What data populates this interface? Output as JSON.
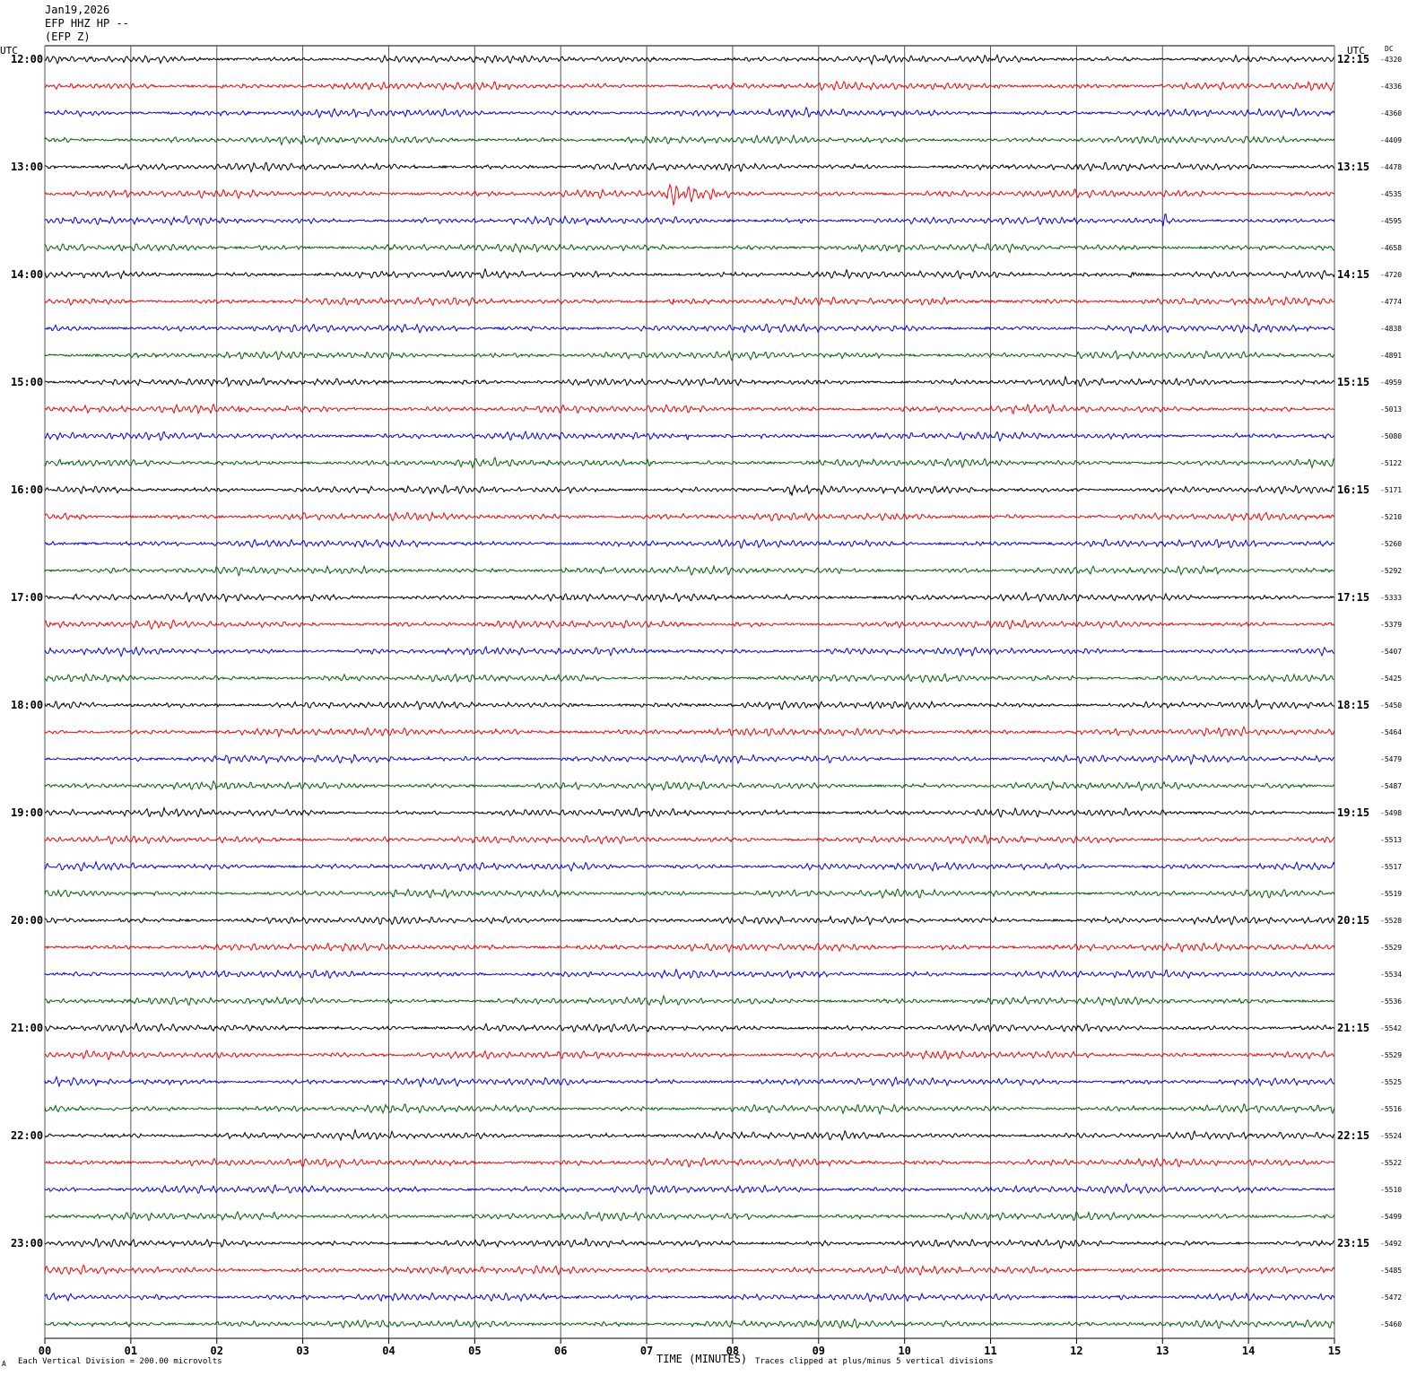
{
  "header": {
    "date": "Jan19,2026",
    "channel": "EFP HHZ HP --",
    "station": "(EFP Z)"
  },
  "left_axis_title": "UTC",
  "right_axis_title": "UTC",
  "dc_title": "DC",
  "footer": {
    "scale_note": "Each Vertical Division =  200.00 microvolts",
    "clip_note": "Traces clipped at plus/minus 5 vertical divisions",
    "corner_mark": "A"
  },
  "chart_data": {
    "type": "line",
    "title": "",
    "xlabel": "TIME (MINUTES)",
    "ylabel": "",
    "xlim": [
      0,
      15
    ],
    "x_ticks": [
      "00",
      "01",
      "02",
      "03",
      "04",
      "05",
      "06",
      "07",
      "08",
      "09",
      "10",
      "11",
      "12",
      "13",
      "14",
      "15"
    ],
    "trace_colors": [
      "#000000",
      "#ff0000",
      "#0000ff",
      "#006400"
    ],
    "hour_labels_left": [
      "12:00",
      "13:00",
      "14:00",
      "15:00",
      "16:00",
      "17:00",
      "18:00",
      "19:00",
      "20:00",
      "21:00",
      "22:00",
      "23:00"
    ],
    "hour_labels_right": [
      "12:15",
      "13:15",
      "14:15",
      "15:15",
      "16:15",
      "17:15",
      "18:15",
      "19:15",
      "20:15",
      "21:15",
      "22:15",
      "23:15"
    ],
    "dc_offsets": [
      "-4320",
      "-4336",
      "-4360",
      "-4409",
      "-4478",
      "-4535",
      "-4595",
      "-4658",
      "-4720",
      "-4774",
      "-4838",
      "-4891",
      "-4959",
      "-5013",
      "-5080",
      "-5122",
      "-5171",
      "-5210",
      "-5260",
      "-5292",
      "-5333",
      "-5379",
      "-5407",
      "-5425",
      "-5450",
      "-5464",
      "-5479",
      "-5487",
      "-5498",
      "-5513",
      "-5517",
      "-5519",
      "-5528",
      "-5529",
      "-5534",
      "-5536",
      "-5542",
      "-5529",
      "-5525",
      "-5516",
      "-5524",
      "-5522",
      "-5510",
      "-5499",
      "-5492",
      "-5485",
      "-5472",
      "-5460"
    ],
    "events": [
      {
        "trace": 5,
        "minute": 7.2,
        "duration": 1.1,
        "amp": 4.5
      },
      {
        "trace": 6,
        "minute": 13.0,
        "duration": 0.15,
        "amp": 5
      },
      {
        "trace": 8,
        "minute": 12.6,
        "duration": 0.25,
        "amp": 5
      },
      {
        "trace": 9,
        "minute": 7.3,
        "duration": 0.15,
        "amp": 5
      },
      {
        "trace": 9,
        "minute": 13.5,
        "duration": 0.2,
        "amp": 1.2
      },
      {
        "trace": 13,
        "minute": 2.25,
        "duration": 0.15,
        "amp": 5
      },
      {
        "trace": 13,
        "minute": 7.5,
        "duration": 0.3,
        "amp": 1.2
      },
      {
        "trace": 14,
        "minute": 7.45,
        "duration": 0.12,
        "amp": 3.5
      },
      {
        "trace": 15,
        "minute": 7.0,
        "duration": 0.15,
        "amp": 5
      },
      {
        "trace": 16,
        "minute": 8.65,
        "duration": 0.12,
        "amp": 5
      },
      {
        "trace": 1,
        "minute": 8.2,
        "duration": 0.15,
        "amp": 1.0
      },
      {
        "trace": 2,
        "minute": 5.7,
        "duration": 0.2,
        "amp": 1.0
      },
      {
        "trace": 3,
        "minute": 9.4,
        "duration": 0.2,
        "amp": 1.0
      }
    ]
  }
}
